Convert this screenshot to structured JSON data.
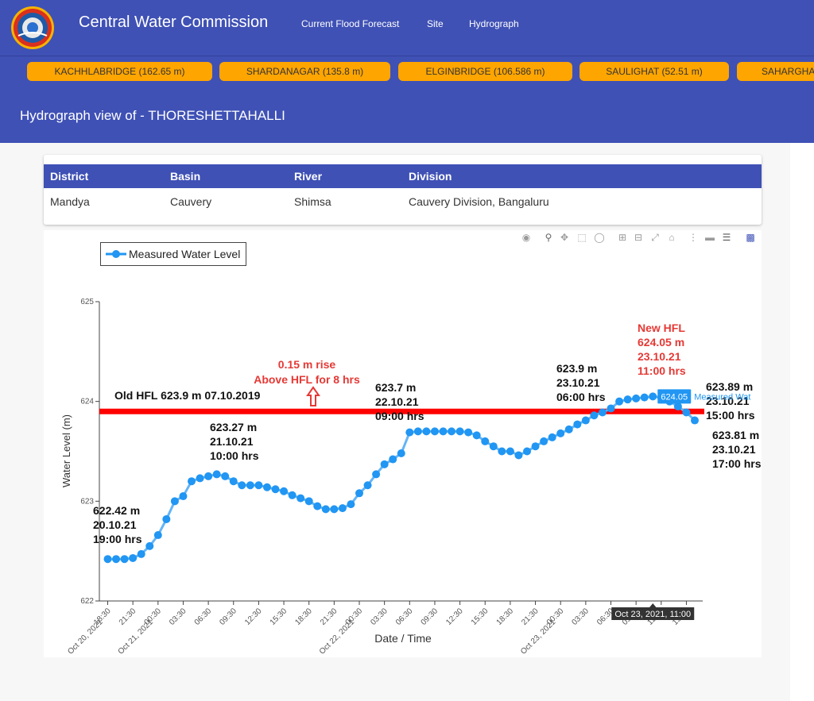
{
  "header": {
    "brand": "Central Water Commission",
    "nav": [
      "Current Flood Forecast",
      "Site",
      "Hydrograph"
    ]
  },
  "stations": [
    "KACHHLABRIDGE (162.65 m)",
    "SHARDANAGAR (135.8 m)",
    "ELGINBRIDGE (106.586 m)",
    "SAULIGHAT (52.51 m)",
    "SAHARGHAT"
  ],
  "page_title": "Hydrograph view of - THORESHETTAHALLI",
  "info_table": {
    "headers": [
      "District",
      "Basin",
      "River",
      "Division"
    ],
    "row": [
      "Mandya",
      "Cauvery",
      "Shimsa",
      "Cauvery Division, Bangaluru"
    ]
  },
  "colors": {
    "primary": "#3f51b5",
    "station_button": "#ffa500",
    "series": "#2196f3",
    "hfl_line": "#ff0000",
    "annotation_red": "#e53935"
  },
  "modebar_icons": [
    "camera-icon",
    "zoom-icon",
    "pan-icon",
    "box-select-icon",
    "lasso-icon",
    "zoom-in-icon",
    "zoom-out-icon",
    "autoscale-icon",
    "reset-axes-icon",
    "spike-lines-icon",
    "hover-closest-icon",
    "hover-compare-icon",
    "plotly-logo-icon"
  ],
  "chart_data": {
    "type": "line",
    "ylabel": "Water Level (m)",
    "xlabel": "Date / Time",
    "ylim": [
      622,
      625
    ],
    "y_ticks": [
      "622",
      "623",
      "624",
      "625"
    ],
    "legend": {
      "label": "Measured Water Level",
      "position": "top-left"
    },
    "x_ticks": [
      {
        "h": 0,
        "label": "18:30"
      },
      {
        "h": 3,
        "label": "21:30"
      },
      {
        "h": 6,
        "label": "00:30"
      },
      {
        "h": 9,
        "label": "03:30"
      },
      {
        "h": 12,
        "label": "06:30"
      },
      {
        "h": 15,
        "label": "09:30"
      },
      {
        "h": 18,
        "label": "12:30"
      },
      {
        "h": 21,
        "label": "15:30"
      },
      {
        "h": 24,
        "label": "18:30"
      },
      {
        "h": 27,
        "label": "21:30"
      },
      {
        "h": 30,
        "label": "00:30"
      },
      {
        "h": 33,
        "label": "03:30"
      },
      {
        "h": 36,
        "label": "06:30"
      },
      {
        "h": 39,
        "label": "09:30"
      },
      {
        "h": 42,
        "label": "12:30"
      },
      {
        "h": 45,
        "label": "15:30"
      },
      {
        "h": 48,
        "label": "18:30"
      },
      {
        "h": 51,
        "label": "21:30"
      },
      {
        "h": 54,
        "label": "00:30"
      },
      {
        "h": 57,
        "label": "03:30"
      },
      {
        "h": 60,
        "label": "06:30"
      },
      {
        "h": 63,
        "label": "09:30"
      },
      {
        "h": 66,
        "label": "12:30"
      },
      {
        "h": 69,
        "label": "15:30"
      }
    ],
    "x_date_labels": [
      {
        "h": 0,
        "label": "Oct 20, 2021"
      },
      {
        "h": 6,
        "label": "Oct 21, 2021"
      },
      {
        "h": 30,
        "label": "Oct 22, 2021"
      },
      {
        "h": 54,
        "label": "Oct 23, 2021"
      }
    ],
    "series": [
      {
        "name": "Measured Water Level",
        "start": "2021-10-20 18:30",
        "step_hours": 1,
        "values": [
          622.42,
          622.42,
          622.42,
          622.43,
          622.47,
          622.55,
          622.66,
          622.82,
          623.0,
          623.05,
          623.2,
          623.23,
          623.25,
          623.27,
          623.25,
          623.2,
          623.16,
          623.16,
          623.16,
          623.14,
          623.12,
          623.1,
          623.06,
          623.03,
          623.0,
          622.95,
          622.92,
          622.92,
          622.93,
          622.97,
          623.08,
          623.16,
          623.27,
          623.37,
          623.42,
          623.48,
          623.69,
          623.7,
          623.7,
          623.7,
          623.7,
          623.7,
          623.7,
          623.69,
          623.66,
          623.6,
          623.55,
          623.5,
          623.5,
          623.46,
          623.5,
          623.55,
          623.6,
          623.64,
          623.68,
          623.72,
          623.77,
          623.81,
          623.86,
          623.89,
          623.93,
          624.0,
          624.02,
          624.03,
          624.04,
          624.05,
          624.04,
          624.0,
          623.95,
          623.89,
          623.81
        ]
      }
    ],
    "hfl_line": {
      "y": 623.9,
      "label": "Old HFL 623.9 m 07.10.2019"
    },
    "annotations": {
      "rise": [
        "0.15 m rise",
        "Above HFL for 8 hrs"
      ],
      "new_hfl": [
        "New HFL",
        "624.05 m",
        "23.10.21",
        "11:00 hrs"
      ],
      "points": [
        [
          "622.42 m",
          "20.10.21",
          "19:00 hrs"
        ],
        [
          "623.27 m",
          "21.10.21",
          "10:00 hrs"
        ],
        [
          "623.7 m",
          "22.10.21",
          "09:00 hrs"
        ],
        [
          "623.9 m",
          "23.10.21",
          "06:00 hrs"
        ],
        [
          "623.89 m",
          "23.10.21",
          "15:00 hrs"
        ],
        [
          "623.81 m",
          "23.10.21",
          "17:00 hrs"
        ]
      ]
    },
    "hover": {
      "x_label": "Oct 23, 2021, 11:00",
      "value": "624.05",
      "series": "Measured Wat"
    }
  }
}
